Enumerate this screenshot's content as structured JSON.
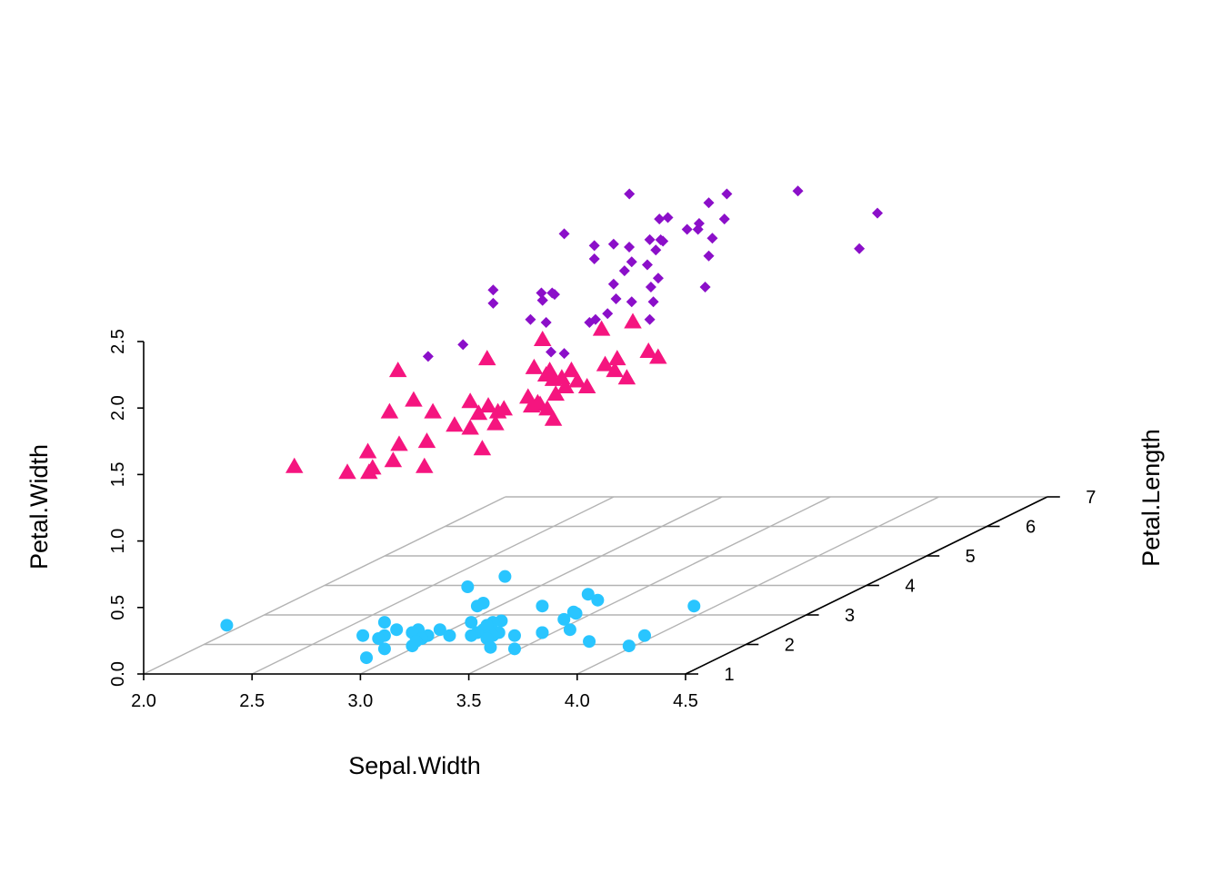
{
  "chart_data": {
    "type": "scatter",
    "projection": "3d",
    "title": "",
    "xlabel": "Sepal.Width",
    "ylabel": "Petal.Length",
    "zlabel": "Petal.Width",
    "xlim": [
      2.0,
      4.5
    ],
    "ylim": [
      1,
      7
    ],
    "zlim": [
      0.0,
      2.5
    ],
    "x_ticks": [
      "2.0",
      "2.5",
      "3.0",
      "3.5",
      "4.0",
      "4.5"
    ],
    "y_ticks": [
      "1",
      "2",
      "3",
      "4",
      "5",
      "6",
      "7"
    ],
    "z_ticks": [
      "0.0",
      "0.5",
      "1.0",
      "1.5",
      "2.0",
      "2.5"
    ],
    "grid": true,
    "legend": "none",
    "series": [
      {
        "marker": "circle",
        "color": "#29C5FF",
        "points": [
          [
            3.5,
            1.4,
            0.2
          ],
          [
            3.0,
            1.4,
            0.2
          ],
          [
            3.2,
            1.3,
            0.2
          ],
          [
            3.1,
            1.5,
            0.2
          ],
          [
            3.6,
            1.4,
            0.2
          ],
          [
            3.9,
            1.7,
            0.4
          ],
          [
            3.4,
            1.4,
            0.3
          ],
          [
            3.4,
            1.5,
            0.2
          ],
          [
            2.9,
            1.4,
            0.2
          ],
          [
            3.1,
            1.5,
            0.1
          ],
          [
            3.7,
            1.5,
            0.2
          ],
          [
            3.4,
            1.6,
            0.2
          ],
          [
            3.0,
            1.4,
            0.1
          ],
          [
            3.0,
            1.1,
            0.1
          ],
          [
            4.0,
            1.2,
            0.2
          ],
          [
            4.4,
            1.5,
            0.4
          ],
          [
            3.9,
            1.3,
            0.4
          ],
          [
            3.5,
            1.4,
            0.3
          ],
          [
            3.8,
            1.7,
            0.3
          ],
          [
            3.8,
            1.5,
            0.3
          ],
          [
            3.4,
            1.7,
            0.2
          ],
          [
            3.7,
            1.5,
            0.4
          ],
          [
            3.6,
            1.0,
            0.2
          ],
          [
            3.3,
            1.7,
            0.5
          ],
          [
            3.4,
            1.9,
            0.2
          ],
          [
            3.0,
            1.6,
            0.2
          ],
          [
            3.4,
            1.6,
            0.4
          ],
          [
            3.5,
            1.5,
            0.2
          ],
          [
            3.4,
            1.4,
            0.2
          ],
          [
            3.2,
            1.6,
            0.2
          ],
          [
            3.1,
            1.6,
            0.2
          ],
          [
            3.4,
            1.5,
            0.4
          ],
          [
            4.1,
            1.5,
            0.1
          ],
          [
            4.2,
            1.4,
            0.2
          ],
          [
            3.1,
            1.5,
            0.2
          ],
          [
            3.2,
            1.2,
            0.2
          ],
          [
            3.5,
            1.3,
            0.2
          ],
          [
            3.6,
            1.4,
            0.1
          ],
          [
            3.0,
            1.3,
            0.2
          ],
          [
            3.4,
            1.5,
            0.2
          ],
          [
            3.5,
            1.3,
            0.3
          ],
          [
            2.3,
            1.3,
            0.3
          ],
          [
            3.2,
            1.3,
            0.2
          ],
          [
            3.5,
            1.6,
            0.6
          ],
          [
            3.8,
            1.9,
            0.4
          ],
          [
            3.0,
            1.4,
            0.3
          ],
          [
            3.8,
            1.6,
            0.2
          ],
          [
            3.2,
            1.4,
            0.2
          ],
          [
            3.7,
            1.5,
            0.2
          ],
          [
            3.3,
            1.4,
            0.2
          ]
        ]
      },
      {
        "marker": "triangle",
        "color": "#F5157F",
        "points": [
          [
            3.2,
            4.7,
            1.4
          ],
          [
            3.2,
            4.5,
            1.5
          ],
          [
            3.1,
            4.9,
            1.5
          ],
          [
            2.3,
            4.0,
            1.3
          ],
          [
            2.8,
            4.6,
            1.5
          ],
          [
            2.8,
            4.5,
            1.3
          ],
          [
            3.3,
            4.7,
            1.6
          ],
          [
            2.4,
            3.3,
            1.0
          ],
          [
            2.9,
            4.6,
            1.3
          ],
          [
            2.7,
            3.9,
            1.4
          ],
          [
            2.0,
            3.5,
            1.0
          ],
          [
            3.0,
            4.2,
            1.5
          ],
          [
            2.2,
            4.0,
            1.0
          ],
          [
            2.9,
            4.7,
            1.4
          ],
          [
            2.9,
            3.6,
            1.3
          ],
          [
            3.1,
            4.4,
            1.4
          ],
          [
            3.0,
            4.5,
            1.5
          ],
          [
            2.7,
            4.1,
            1.0
          ],
          [
            2.2,
            4.5,
            1.5
          ],
          [
            2.5,
            3.9,
            1.1
          ],
          [
            3.2,
            4.8,
            1.8
          ],
          [
            2.8,
            4.0,
            1.3
          ],
          [
            2.5,
            4.9,
            1.5
          ],
          [
            2.8,
            4.7,
            1.2
          ],
          [
            2.9,
            4.3,
            1.3
          ],
          [
            3.0,
            4.4,
            1.4
          ],
          [
            2.8,
            4.8,
            1.4
          ],
          [
            3.0,
            5.0,
            1.7
          ],
          [
            2.9,
            4.5,
            1.5
          ],
          [
            2.6,
            3.5,
            1.0
          ],
          [
            2.4,
            3.8,
            1.1
          ],
          [
            2.4,
            3.7,
            1.0
          ],
          [
            2.7,
            3.9,
            1.2
          ],
          [
            2.7,
            5.1,
            1.6
          ],
          [
            3.0,
            4.5,
            1.5
          ],
          [
            3.4,
            4.5,
            1.6
          ],
          [
            3.1,
            4.7,
            1.5
          ],
          [
            2.3,
            4.4,
            1.3
          ],
          [
            3.0,
            4.1,
            1.3
          ],
          [
            2.5,
            4.0,
            1.3
          ],
          [
            2.6,
            4.4,
            1.2
          ],
          [
            3.0,
            4.6,
            1.4
          ],
          [
            2.6,
            4.0,
            1.2
          ],
          [
            2.3,
            3.3,
            1.0
          ],
          [
            2.7,
            4.2,
            1.3
          ],
          [
            3.0,
            4.2,
            1.2
          ],
          [
            2.9,
            4.2,
            1.3
          ],
          [
            2.9,
            4.3,
            1.3
          ],
          [
            2.5,
            3.0,
            1.1
          ],
          [
            2.8,
            4.1,
            1.3
          ]
        ]
      },
      {
        "marker": "diamond",
        "color": "#8B0FC9",
        "points": [
          [
            3.3,
            6.0,
            2.5
          ],
          [
            2.7,
            5.1,
            1.9
          ],
          [
            3.0,
            5.9,
            2.1
          ],
          [
            2.9,
            5.6,
            1.8
          ],
          [
            3.0,
            5.8,
            2.2
          ],
          [
            3.0,
            6.6,
            2.1
          ],
          [
            2.5,
            4.5,
            1.7
          ],
          [
            2.9,
            6.3,
            1.8
          ],
          [
            2.5,
            5.8,
            1.8
          ],
          [
            3.6,
            6.1,
            2.5
          ],
          [
            3.2,
            5.1,
            2.0
          ],
          [
            2.7,
            5.3,
            1.9
          ],
          [
            3.0,
            5.5,
            2.1
          ],
          [
            2.5,
            5.0,
            2.0
          ],
          [
            2.8,
            5.1,
            2.4
          ],
          [
            3.2,
            5.3,
            2.3
          ],
          [
            3.0,
            5.5,
            1.8
          ],
          [
            3.8,
            6.7,
            2.2
          ],
          [
            2.6,
            6.9,
            2.3
          ],
          [
            2.2,
            5.0,
            1.5
          ],
          [
            3.2,
            5.7,
            2.3
          ],
          [
            2.8,
            4.9,
            2.0
          ],
          [
            2.8,
            6.7,
            2.0
          ],
          [
            2.7,
            4.9,
            1.8
          ],
          [
            3.3,
            5.7,
            2.1
          ],
          [
            3.2,
            6.0,
            1.8
          ],
          [
            2.8,
            4.8,
            1.8
          ],
          [
            3.0,
            4.9,
            1.8
          ],
          [
            2.8,
            5.6,
            2.1
          ],
          [
            3.0,
            5.8,
            1.6
          ],
          [
            2.8,
            6.1,
            1.9
          ],
          [
            3.8,
            6.4,
            2.0
          ],
          [
            2.8,
            5.6,
            2.2
          ],
          [
            2.8,
            5.1,
            1.5
          ],
          [
            2.6,
            5.6,
            1.4
          ],
          [
            3.0,
            6.1,
            2.3
          ],
          [
            3.4,
            5.6,
            2.4
          ],
          [
            3.1,
            5.5,
            1.8
          ],
          [
            3.0,
            4.8,
            1.8
          ],
          [
            3.1,
            5.4,
            2.1
          ],
          [
            3.1,
            5.6,
            2.4
          ],
          [
            3.1,
            5.1,
            2.3
          ],
          [
            2.7,
            5.1,
            1.9
          ],
          [
            3.2,
            5.9,
            2.3
          ],
          [
            3.3,
            5.7,
            2.5
          ],
          [
            3.0,
            5.2,
            2.3
          ],
          [
            2.5,
            5.0,
            1.9
          ],
          [
            3.0,
            5.2,
            2.0
          ],
          [
            3.4,
            5.4,
            2.3
          ],
          [
            3.0,
            5.1,
            1.8
          ]
        ]
      }
    ]
  }
}
